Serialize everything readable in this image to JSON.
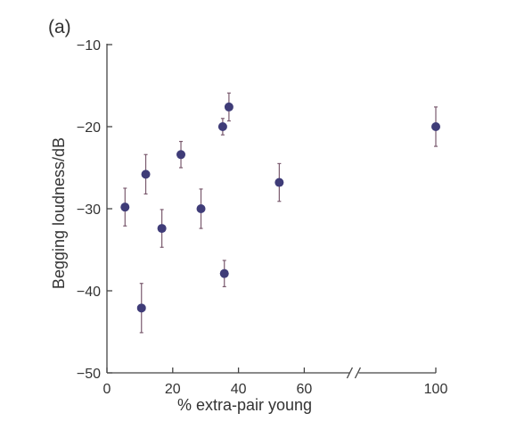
{
  "chart_data": {
    "type": "scatter",
    "panel_label": "(a)",
    "title": "",
    "xlabel": "% extra-pair young",
    "ylabel": "Begging loudness/dB",
    "xlim": [
      0,
      100
    ],
    "ylim": [
      -50,
      -10
    ],
    "x_axis_break": [
      70,
      95
    ],
    "xticks": [
      0,
      20,
      40,
      60,
      100
    ],
    "xtick_labels": [
      "0",
      "20",
      "40",
      "60",
      "100"
    ],
    "yticks": [
      -50,
      -40,
      -30,
      -20,
      -10
    ],
    "ytick_labels": [
      "−50",
      "−40",
      "−30",
      "−20",
      "−10"
    ],
    "grid": false,
    "legend": "none",
    "point_color": "#3f3c78",
    "errorbar_color": "#7a5a6e",
    "series": [
      {
        "points": [
          {
            "x": 5.5,
            "y": -29.8,
            "err": 2.3
          },
          {
            "x": 10.5,
            "y": -42.1,
            "err": 3.0
          },
          {
            "x": 11.8,
            "y": -25.8,
            "err": 2.4
          },
          {
            "x": 16.7,
            "y": -32.4,
            "err": 2.3
          },
          {
            "x": 22.5,
            "y": -23.4,
            "err": 1.6
          },
          {
            "x": 28.6,
            "y": -30.0,
            "err": 2.4
          },
          {
            "x": 35.2,
            "y": -20.0,
            "err": 1.0
          },
          {
            "x": 35.7,
            "y": -37.9,
            "err": 1.6
          },
          {
            "x": 37.1,
            "y": -17.6,
            "err": 1.7
          },
          {
            "x": 52.4,
            "y": -26.8,
            "err": 2.3
          },
          {
            "x": 100,
            "y": -20.0,
            "err": 2.4
          }
        ]
      }
    ]
  }
}
